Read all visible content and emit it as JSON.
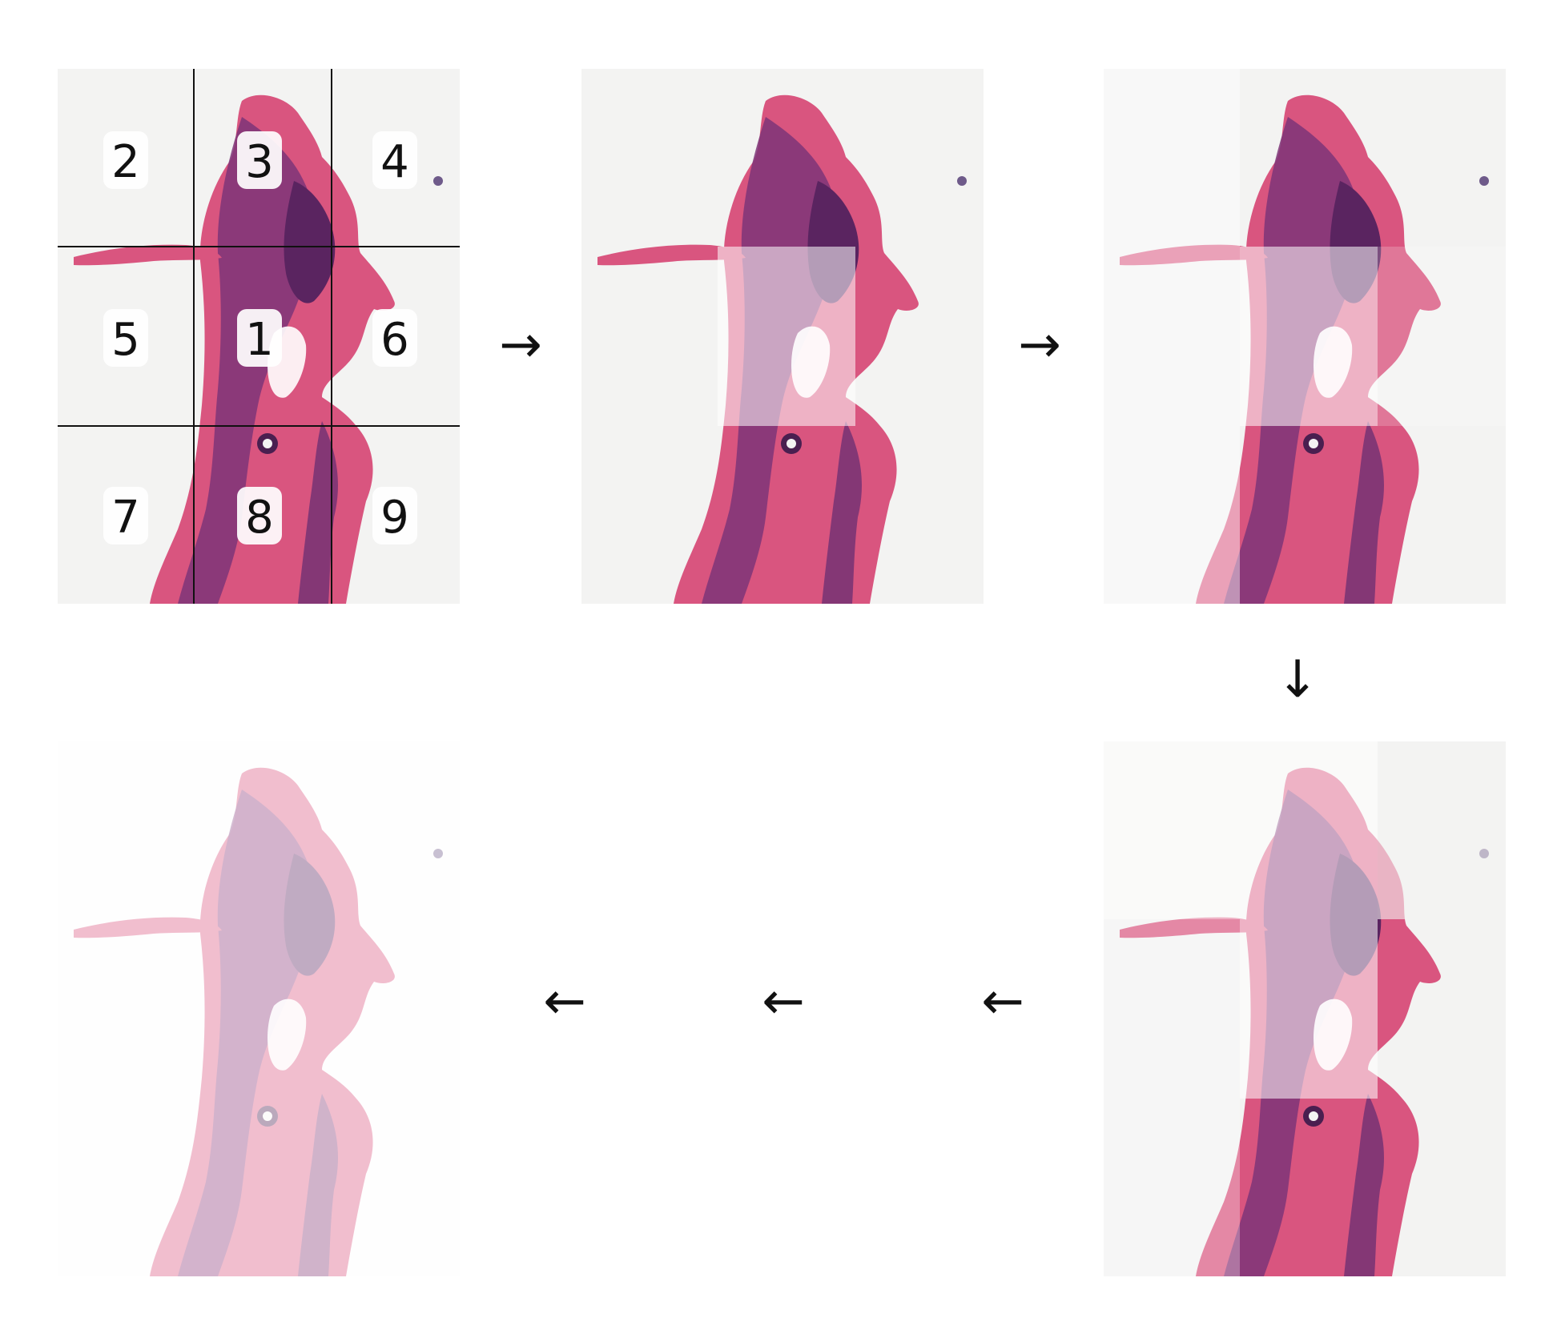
{
  "grid": {
    "labels": [
      "2",
      "3",
      "4",
      "5",
      "1",
      "6",
      "7",
      "8",
      "9"
    ]
  },
  "arrows": {
    "row1": [
      "→",
      "→"
    ],
    "down": "↓",
    "row2": [
      "←",
      "←",
      "←"
    ]
  },
  "colors": {
    "background": "#f3f3f2",
    "stain_pink": "#d9557f",
    "stain_purple": "#6e2f73",
    "faded_pink": "#f2c9d6",
    "grid_line": "#111111"
  }
}
